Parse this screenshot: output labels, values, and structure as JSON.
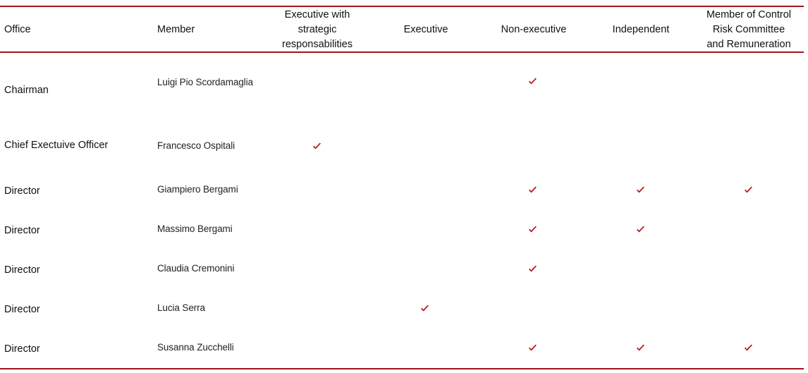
{
  "colors": {
    "rule": "#a0151c",
    "check": "#b3121a"
  },
  "headers": {
    "office": "Office",
    "member": "Member",
    "exec_strategic": [
      "Executive with",
      "strategic",
      "responsabilities"
    ],
    "executive": "Executive",
    "non_executive": "Non-executive",
    "independent": "Independent",
    "committee": [
      "Member of Control",
      "Risk Committee",
      "and Remuneration"
    ]
  },
  "rows": [
    {
      "office": "Chairman",
      "member": "Luigi Pio Scordamaglia",
      "checks": {
        "exec_strategic": false,
        "executive": false,
        "non_executive": true,
        "independent": false,
        "committee": false
      }
    },
    {
      "office": "Chief Exectuive Officer",
      "member": "Francesco Ospitali",
      "checks": {
        "exec_strategic": true,
        "executive": false,
        "non_executive": false,
        "independent": false,
        "committee": false
      }
    },
    {
      "office": "Director",
      "member": "Giampiero Bergami",
      "checks": {
        "exec_strategic": false,
        "executive": false,
        "non_executive": true,
        "independent": true,
        "committee": true
      }
    },
    {
      "office": "Director",
      "member": "Massimo Bergami",
      "checks": {
        "exec_strategic": false,
        "executive": false,
        "non_executive": true,
        "independent": true,
        "committee": false
      }
    },
    {
      "office": "Director",
      "member": "Claudia Cremonini",
      "checks": {
        "exec_strategic": false,
        "executive": false,
        "non_executive": true,
        "independent": false,
        "committee": false
      }
    },
    {
      "office": "Director",
      "member": "Lucia Serra",
      "checks": {
        "exec_strategic": false,
        "executive": true,
        "non_executive": false,
        "independent": false,
        "committee": false
      }
    },
    {
      "office": "Director",
      "member": "Susanna Zucchelli",
      "checks": {
        "exec_strategic": false,
        "executive": false,
        "non_executive": true,
        "independent": true,
        "committee": true
      }
    }
  ],
  "icons": {
    "check": "check-mark-icon"
  }
}
